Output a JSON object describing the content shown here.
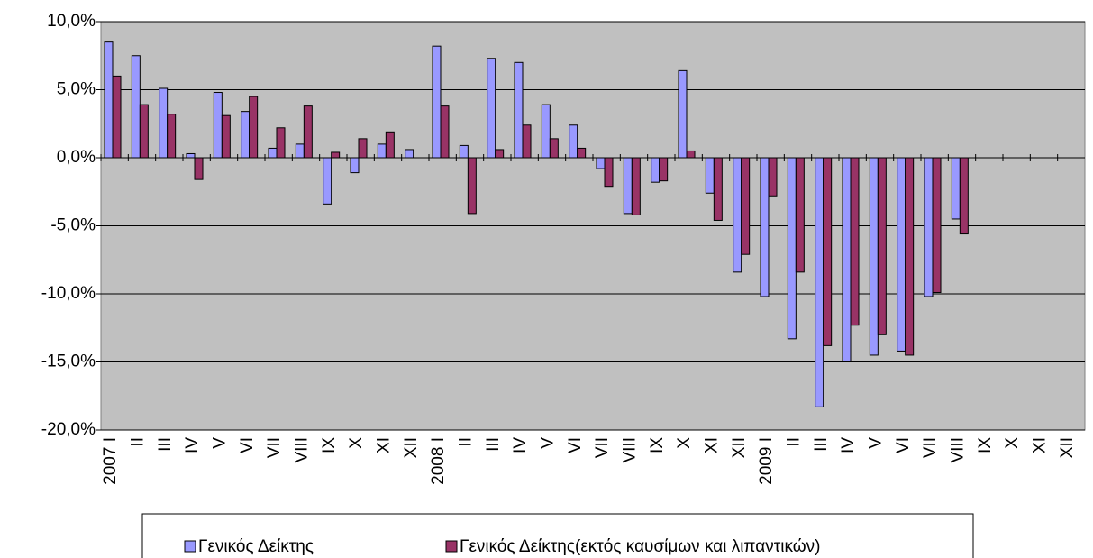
{
  "chart_data": {
    "type": "bar",
    "categories": [
      "2007 I",
      "II",
      "III",
      "IV",
      "V",
      "VI",
      "VII",
      "VIII",
      "IX",
      "X",
      "XI",
      "XII",
      "2008 I",
      "II",
      "III",
      "IV",
      "V",
      "VI",
      "VII",
      "VIII",
      "IX",
      "X",
      "XI",
      "XII",
      "2009 I",
      "II",
      "III",
      "IV",
      "V",
      "VI",
      "VII",
      "VIII",
      "IX",
      "X",
      "XI",
      "XII"
    ],
    "series": [
      {
        "name": "Γενικός Δείκτης",
        "color": "#9999ff",
        "values": [
          8.5,
          7.5,
          5.1,
          0.3,
          4.8,
          3.4,
          0.7,
          1.0,
          -3.4,
          -1.1,
          1.0,
          0.6,
          8.2,
          0.9,
          7.3,
          7.0,
          3.9,
          2.4,
          -0.8,
          -4.1,
          -1.8,
          6.4,
          -2.6,
          -8.4,
          -10.2,
          -13.3,
          -18.3,
          -15.0,
          -14.5,
          -14.2,
          -10.2,
          -4.5,
          null,
          null,
          null,
          null
        ]
      },
      {
        "name": "Γενικός Δείκτης(εκτός καυσίμων και λιπαντικών)",
        "color": "#993366",
        "values": [
          6.0,
          3.9,
          3.2,
          -1.6,
          3.1,
          4.5,
          2.2,
          3.8,
          0.4,
          1.4,
          1.9,
          null,
          3.8,
          -4.1,
          0.6,
          2.4,
          1.4,
          0.7,
          -2.1,
          -4.2,
          -1.7,
          0.5,
          -4.6,
          -7.1,
          -2.8,
          -8.4,
          -13.8,
          -12.3,
          -13.0,
          -14.5,
          -9.9,
          -5.6,
          null,
          null,
          null,
          null
        ]
      }
    ],
    "ylim": [
      -20,
      10
    ],
    "yticks": [
      {
        "value": -20,
        "label": "-20,0%"
      },
      {
        "value": -15,
        "label": "-15,0%"
      },
      {
        "value": -10,
        "label": "-10,0%"
      },
      {
        "value": -5,
        "label": "-5,0%"
      },
      {
        "value": 0,
        "label": "0,0%"
      },
      {
        "value": 5,
        "label": "5,0%"
      },
      {
        "value": 10,
        "label": "10,0%"
      }
    ],
    "grid": true,
    "legend": "bottom"
  }
}
